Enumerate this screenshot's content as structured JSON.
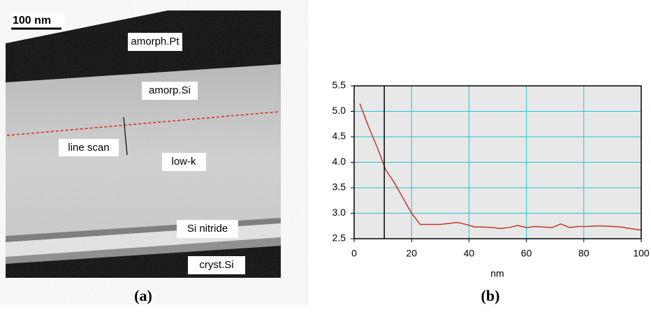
{
  "panel_a": {
    "scale_bar": "100 nm",
    "labels": [
      "amorph.Pt",
      "amorp.Si",
      "line scan",
      "low-k",
      "Si nitride",
      "cryst.Si"
    ],
    "panel_label": "(a)"
  },
  "chart_data": {
    "type": "line",
    "panel_label": "(b)",
    "xlabel": "nm",
    "x": [
      2,
      5,
      8,
      11,
      14,
      17,
      20,
      23,
      27,
      30,
      33,
      36,
      39,
      42,
      45,
      48,
      51,
      54,
      57,
      60,
      63,
      66,
      69,
      72,
      75,
      78,
      81,
      84,
      87,
      90,
      93,
      96,
      100
    ],
    "values": [
      5.15,
      4.7,
      4.3,
      3.85,
      3.6,
      3.3,
      3.0,
      2.78,
      2.78,
      2.78,
      2.8,
      2.82,
      2.78,
      2.73,
      2.73,
      2.72,
      2.7,
      2.72,
      2.76,
      2.72,
      2.74,
      2.73,
      2.72,
      2.79,
      2.72,
      2.74,
      2.74,
      2.75,
      2.75,
      2.74,
      2.73,
      2.7,
      2.67
    ],
    "color": "#c0392b",
    "cursor_x": 10.5,
    "xlim": [
      0,
      100
    ],
    "xticks": [
      0,
      20,
      40,
      60,
      80,
      100
    ],
    "ylim": [
      2.5,
      5.5
    ],
    "yticks": [
      2.5,
      {
        "value": 3.0,
        "label": "3.0"
      },
      3.5,
      {
        "value": 4.0,
        "label": "4.0"
      },
      4.5,
      {
        "value": 5.0,
        "label": "5.0"
      },
      5.5
    ],
    "grid": true,
    "grid_color": "#22c4d4",
    "background": "#e8e8e8"
  }
}
